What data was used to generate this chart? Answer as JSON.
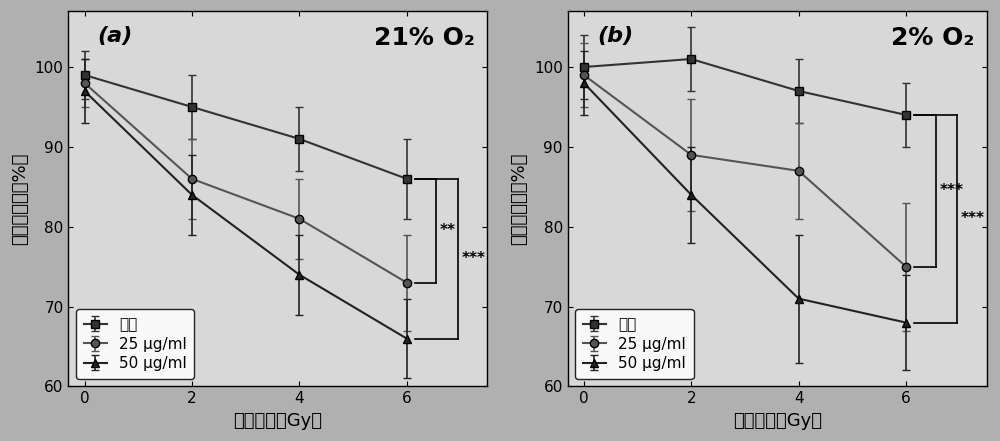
{
  "panel_a": {
    "title": "21% O₂",
    "label": "(a)",
    "x": [
      0,
      2,
      4,
      6
    ],
    "series": {
      "control": {
        "y": [
          99,
          95,
          91,
          86
        ],
        "yerr": [
          3,
          4,
          4,
          5
        ],
        "label": "对照",
        "marker": "s",
        "color": "#333333"
      },
      "25ug": {
        "y": [
          98,
          86,
          81,
          73
        ],
        "yerr": [
          3,
          5,
          5,
          6
        ],
        "label": "25 μg/ml",
        "marker": "o",
        "color": "#555555"
      },
      "50ug": {
        "y": [
          97,
          84,
          74,
          66
        ],
        "yerr": [
          4,
          5,
          5,
          5
        ],
        "label": "50 μg/ml",
        "marker": "^",
        "color": "#222222"
      }
    },
    "sig1": "**",
    "sig2": "***"
  },
  "panel_b": {
    "title": "2% O₂",
    "label": "(b)",
    "x": [
      0,
      2,
      4,
      6
    ],
    "series": {
      "control": {
        "y": [
          100,
          101,
          97,
          94
        ],
        "yerr": [
          4,
          4,
          4,
          4
        ],
        "label": "对照",
        "marker": "s",
        "color": "#333333"
      },
      "25ug": {
        "y": [
          99,
          89,
          87,
          75
        ],
        "yerr": [
          4,
          7,
          6,
          8
        ],
        "label": "25 μg/ml",
        "marker": "o",
        "color": "#555555"
      },
      "50ug": {
        "y": [
          98,
          84,
          71,
          68
        ],
        "yerr": [
          4,
          6,
          8,
          6
        ],
        "label": "50 μg/ml",
        "marker": "^",
        "color": "#222222"
      }
    },
    "sig1": "***",
    "sig2": "***"
  },
  "ylim": [
    60,
    107
  ],
  "yticks": [
    60,
    70,
    80,
    90,
    100
  ],
  "xlim": [
    -0.3,
    7.5
  ],
  "xticks": [
    0,
    2,
    4,
    6
  ],
  "xlabel": "放射剂量（Gy）",
  "ylabel": "细胞存活率（%）",
  "bg_color": "#d8d8d8",
  "fontsize_label": 13,
  "fontsize_title": 18,
  "fontsize_tick": 11,
  "fontsize_legend": 11,
  "fontsize_panel": 16,
  "fontsize_sig": 11
}
